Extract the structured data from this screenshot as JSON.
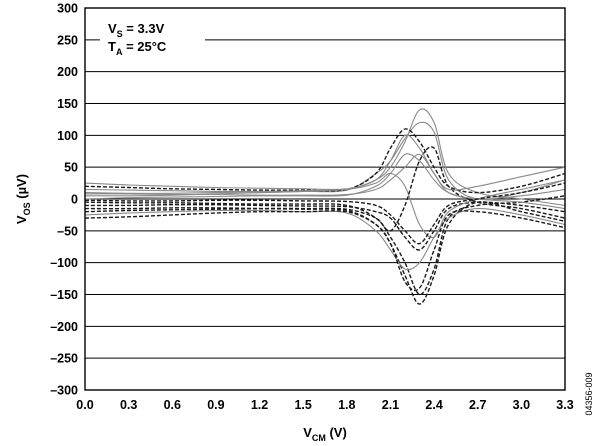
{
  "chart_data": {
    "type": "line",
    "title": "",
    "xlabel": {
      "main": "V",
      "sub": "CM",
      "unit": " (V)"
    },
    "ylabel": {
      "main": "V",
      "sub": "OS",
      "unit": " (µV)"
    },
    "xlim": [
      0,
      3.3
    ],
    "ylim": [
      -300,
      300
    ],
    "xticks": [
      "0.0",
      "0.3",
      "0.6",
      "0.9",
      "1.2",
      "1.5",
      "1.8",
      "2.1",
      "2.4",
      "2.7",
      "3.0",
      "3.3"
    ],
    "yticks": [
      "300",
      "250",
      "200",
      "150",
      "100",
      "50",
      "0",
      "–50",
      "–100",
      "–150",
      "–200",
      "–250",
      "–300"
    ],
    "grid": "horizontal",
    "annotations": [
      {
        "main": "V",
        "sub": "S",
        "rest": " = 3.3V"
      },
      {
        "main": "T",
        "sub": "A",
        "rest": " = 25°C"
      }
    ],
    "figure_id": "04356-009",
    "series_styles": [
      "solid gray",
      "dashed black"
    ],
    "series": [
      {
        "x": [
          0,
          0.3,
          0.6,
          0.9,
          1.2,
          1.5,
          1.8,
          2.0,
          2.1,
          2.2,
          2.3,
          2.4,
          2.5,
          2.7,
          3.0,
          3.3
        ],
        "values": [
          10,
          9,
          9,
          10,
          10,
          12,
          14,
          40,
          60,
          95,
          120,
          105,
          30,
          0,
          10,
          30
        ]
      },
      {
        "x": [
          0,
          0.3,
          0.6,
          0.9,
          1.2,
          1.5,
          1.8,
          2.0,
          2.1,
          2.2,
          2.3,
          2.4,
          2.5,
          2.7,
          3.0,
          3.3
        ],
        "values": [
          -15,
          -15,
          -14,
          -14,
          -15,
          -16,
          -18,
          -40,
          -70,
          -120,
          -165,
          -120,
          -40,
          -5,
          -20,
          -35
        ]
      },
      {
        "x": [
          0,
          0.3,
          0.6,
          0.9,
          1.2,
          1.5,
          1.8,
          2.0,
          2.1,
          2.2,
          2.3,
          2.4,
          2.5,
          2.7,
          3.0,
          3.3
        ],
        "values": [
          5,
          5,
          6,
          8,
          10,
          12,
          15,
          30,
          50,
          90,
          140,
          120,
          40,
          10,
          0,
          -10
        ]
      },
      {
        "x": [
          0,
          0.3,
          0.6,
          0.9,
          1.2,
          1.5,
          1.8,
          2.0,
          2.1,
          2.2,
          2.3,
          2.4,
          2.5,
          2.7,
          3.0,
          3.3
        ],
        "values": [
          -5,
          -6,
          -6,
          -7,
          -8,
          -8,
          -10,
          -30,
          -60,
          -100,
          -150,
          -110,
          -30,
          -10,
          -5,
          5
        ]
      },
      {
        "x": [
          0,
          0.3,
          0.6,
          0.9,
          1.2,
          1.5,
          1.8,
          2.0,
          2.1,
          2.2,
          2.3,
          2.4,
          2.5,
          2.7,
          3.0,
          3.3
        ],
        "values": [
          0,
          2,
          3,
          4,
          5,
          5,
          6,
          20,
          40,
          70,
          60,
          30,
          10,
          0,
          5,
          15
        ]
      },
      {
        "x": [
          0,
          0.3,
          0.6,
          0.9,
          1.2,
          1.5,
          1.8,
          2.0,
          2.1,
          2.2,
          2.3,
          2.4,
          2.5,
          2.7,
          3.0,
          3.3
        ],
        "values": [
          20,
          18,
          16,
          15,
          14,
          14,
          15,
          40,
          80,
          110,
          90,
          50,
          20,
          10,
          20,
          40
        ]
      },
      {
        "x": [
          0,
          0.3,
          0.6,
          0.9,
          1.2,
          1.5,
          1.8,
          2.0,
          2.1,
          2.2,
          2.3,
          2.4,
          2.5,
          2.7,
          3.0,
          3.3
        ],
        "values": [
          -25,
          -22,
          -20,
          -18,
          -18,
          -20,
          -22,
          -50,
          -80,
          -110,
          -100,
          -60,
          -30,
          -15,
          -25,
          -40
        ]
      },
      {
        "x": [
          0,
          0.3,
          0.6,
          0.9,
          1.2,
          1.5,
          1.8,
          2.0,
          2.1,
          2.2,
          2.3,
          2.4,
          2.5,
          2.7,
          3.0,
          3.3
        ],
        "values": [
          -10,
          -10,
          -9,
          -9,
          -10,
          -11,
          -12,
          -20,
          -30,
          -60,
          -80,
          -50,
          -15,
          -5,
          -10,
          -20
        ]
      },
      {
        "x": [
          0,
          0.3,
          0.6,
          0.9,
          1.2,
          1.5,
          1.8,
          2.0,
          2.1,
          2.2,
          2.3,
          2.4,
          2.5,
          2.7,
          3.0,
          3.3
        ],
        "values": [
          15,
          14,
          13,
          12,
          12,
          13,
          15,
          25,
          40,
          20,
          -40,
          -60,
          -20,
          0,
          15,
          30
        ]
      },
      {
        "x": [
          0,
          0.3,
          0.6,
          0.9,
          1.2,
          1.5,
          1.8,
          2.0,
          2.1,
          2.2,
          2.3,
          2.4,
          2.5,
          2.7,
          3.0,
          3.3
        ],
        "values": [
          -20,
          -18,
          -17,
          -16,
          -15,
          -15,
          -16,
          -30,
          -50,
          -10,
          60,
          80,
          20,
          -5,
          -15,
          -30
        ]
      },
      {
        "x": [
          0,
          0.3,
          0.6,
          0.9,
          1.2,
          1.5,
          1.8,
          2.0,
          2.1,
          2.2,
          2.3,
          2.4,
          2.5,
          2.7,
          3.0,
          3.3
        ],
        "values": [
          8,
          8,
          7,
          7,
          6,
          6,
          7,
          15,
          30,
          50,
          70,
          40,
          10,
          0,
          -5,
          -15
        ]
      },
      {
        "x": [
          0,
          0.3,
          0.6,
          0.9,
          1.2,
          1.5,
          1.8,
          2.0,
          2.1,
          2.2,
          2.3,
          2.4,
          2.5,
          2.7,
          3.0,
          3.3
        ],
        "values": [
          -2,
          -3,
          -3,
          -2,
          -2,
          -3,
          -4,
          -10,
          -25,
          -50,
          -70,
          -40,
          -10,
          0,
          10,
          25
        ]
      },
      {
        "x": [
          0,
          0.3,
          0.6,
          0.9,
          1.2,
          1.5,
          1.8,
          2.0,
          2.1,
          2.2,
          2.3,
          2.4,
          2.5,
          2.7,
          3.0,
          3.3
        ],
        "values": [
          25,
          22,
          20,
          18,
          17,
          16,
          16,
          30,
          60,
          100,
          80,
          40,
          15,
          20,
          35,
          50
        ]
      },
      {
        "x": [
          0,
          0.3,
          0.6,
          0.9,
          1.2,
          1.5,
          1.8,
          2.0,
          2.1,
          2.2,
          2.3,
          2.4,
          2.5,
          2.7,
          3.0,
          3.3
        ],
        "values": [
          -30,
          -28,
          -25,
          -22,
          -20,
          -20,
          -20,
          -40,
          -70,
          -130,
          -140,
          -80,
          -25,
          -20,
          -30,
          -45
        ]
      }
    ]
  }
}
